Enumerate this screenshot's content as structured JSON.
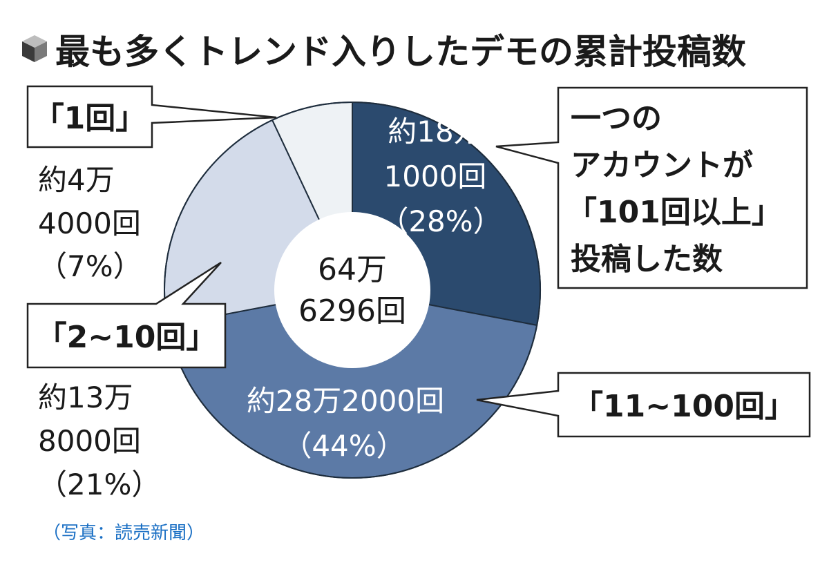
{
  "chart_data": {
    "type": "pie",
    "title": "最も多くトレンド入りしたデモの累計投稿数",
    "center_label": [
      "64万",
      "6296回"
    ],
    "slices": [
      {
        "category": "一つのアカウントが「101回以上」投稿した数",
        "value_text": [
          "約18万",
          "1000回"
        ],
        "percent_text": "（28%）",
        "percent": 28,
        "color": "#2b4a6e"
      },
      {
        "category": "「11~100回」",
        "value_text": [
          "約28万2000回"
        ],
        "percent_text": "（44%）",
        "percent": 44,
        "color": "#5c7aa6"
      },
      {
        "category": "「2~10回」",
        "value_text": [
          "約13万",
          "8000回"
        ],
        "percent_text": "（21%）",
        "percent": 21,
        "color": "#d3dbea"
      },
      {
        "category": "「1回」",
        "value_text": [
          "約4万",
          "4000回"
        ],
        "percent_text": "（7%）",
        "percent": 7,
        "color": "#eef2f5"
      }
    ]
  },
  "title_icon": "cube-bullet-icon",
  "callouts": {
    "c101": [
      "一つの",
      "アカウントが",
      "「101回以上」",
      "投稿した数"
    ],
    "c11_100": "「11~100回」",
    "c2_10": "「2~10回」",
    "c1": "「1回」"
  },
  "source": "（写真：読売新聞）"
}
